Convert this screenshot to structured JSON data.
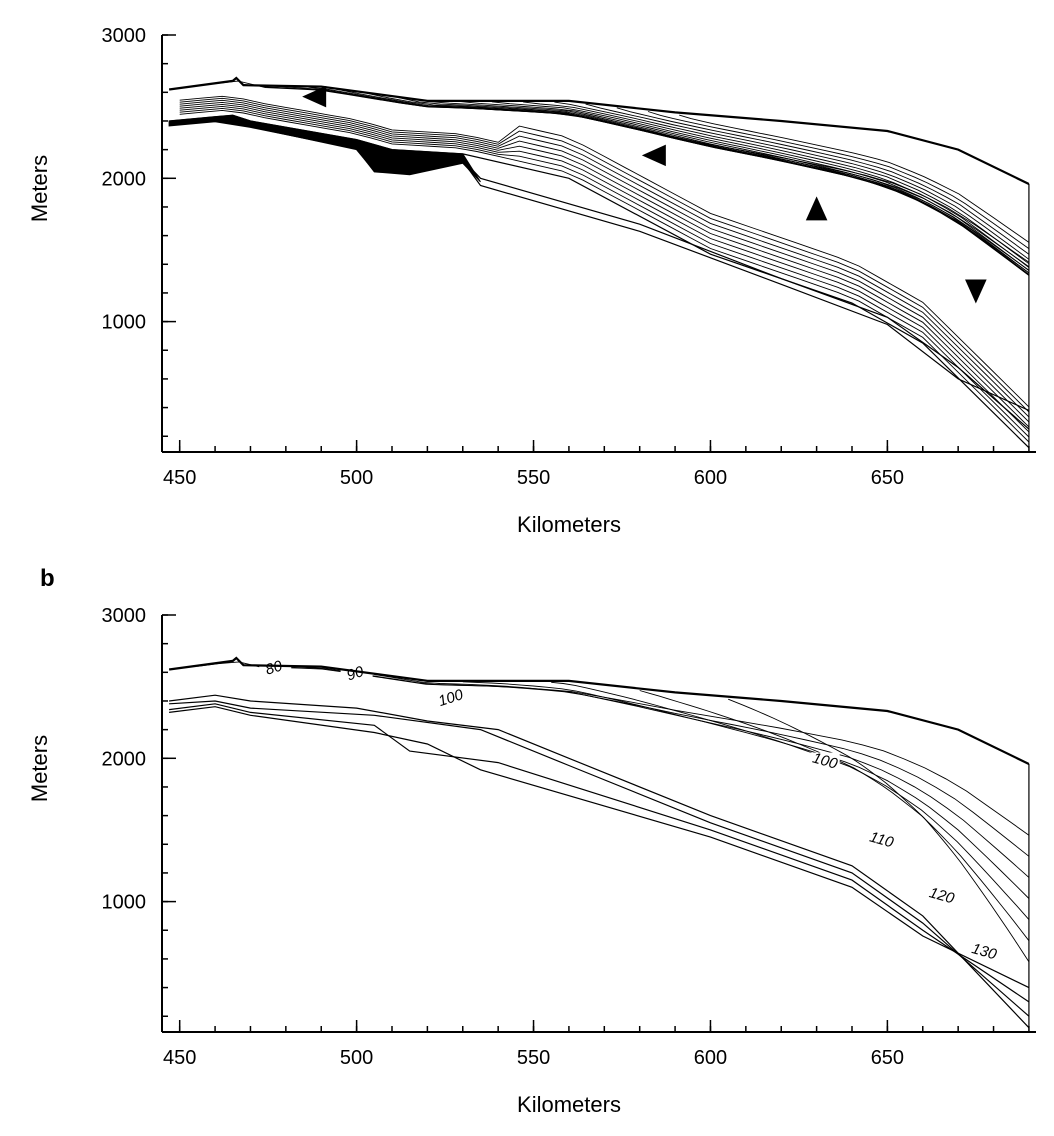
{
  "chart_data": [
    {
      "panel": "",
      "type": "line",
      "xlabel": "Kilometers",
      "ylabel": "Meters",
      "xlim": [
        445,
        692
      ],
      "ylim": [
        90,
        3000
      ],
      "x_ticks": [
        450,
        500,
        550,
        600,
        650
      ],
      "y_ticks": [
        1000,
        2000,
        3000
      ],
      "series": [
        {
          "values": [
            [
              447,
              2620
            ],
            [
              465,
              2680
            ],
            [
              466,
              2700
            ],
            [
              468,
              2650
            ],
            [
              490,
              2640
            ],
            [
              520,
              2540
            ],
            [
              560,
              2540
            ],
            [
              590,
              2460
            ],
            [
              620,
              2400
            ],
            [
              650,
              2330
            ],
            [
              670,
              2200
            ],
            [
              690,
              1960
            ]
          ]
        },
        {
          "values": [
            [
              447,
              2400
            ],
            [
              460,
              2430
            ],
            [
              465,
              2440
            ],
            [
              470,
              2400
            ],
            [
              500,
              2270
            ],
            [
              510,
              2200
            ],
            [
              530,
              2170
            ],
            [
              560,
              2000
            ],
            [
              600,
              1470
            ],
            [
              640,
              1130
            ],
            [
              660,
              850
            ],
            [
              690,
              120
            ]
          ]
        },
        {
          "values": [
            [
              447,
              2390
            ],
            [
              460,
              2420
            ],
            [
              470,
              2380
            ],
            [
              500,
              2230
            ],
            [
              505,
              2070
            ],
            [
              515,
              2050
            ],
            [
              530,
              2130
            ],
            [
              535,
              2000
            ],
            [
              580,
              1680
            ],
            [
              620,
              1300
            ],
            [
              650,
              1030
            ],
            [
              670,
              680
            ],
            [
              690,
              250
            ]
          ]
        },
        {
          "values": [
            [
              447,
              2370
            ],
            [
              460,
              2400
            ],
            [
              470,
              2360
            ],
            [
              500,
              2200
            ],
            [
              505,
              2050
            ],
            [
              515,
              2030
            ],
            [
              530,
              2120
            ],
            [
              535,
              1950
            ],
            [
              580,
              1630
            ],
            [
              620,
              1260
            ],
            [
              650,
              980
            ],
            [
              670,
              600
            ],
            [
              690,
              380
            ]
          ]
        }
      ],
      "flow_markers": [
        {
          "x": 488,
          "y": 2570,
          "direction": "left"
        },
        {
          "x": 584,
          "y": 2160,
          "direction": "left"
        },
        {
          "x": 630,
          "y": 1790,
          "direction": "up"
        },
        {
          "x": 675,
          "y": 1210,
          "direction": "down"
        }
      ]
    },
    {
      "panel": "b",
      "type": "line",
      "xlabel": "Kilometers",
      "ylabel": "Meters",
      "xlim": [
        445,
        692
      ],
      "ylim": [
        90,
        3000
      ],
      "x_ticks": [
        450,
        500,
        550,
        600,
        650
      ],
      "y_ticks": [
        1000,
        2000,
        3000
      ],
      "series": [
        {
          "values": [
            [
              447,
              2620
            ],
            [
              465,
              2680
            ],
            [
              466,
              2700
            ],
            [
              468,
              2650
            ],
            [
              490,
              2640
            ],
            [
              520,
              2540
            ],
            [
              560,
              2540
            ],
            [
              590,
              2460
            ],
            [
              620,
              2400
            ],
            [
              650,
              2330
            ],
            [
              670,
              2200
            ],
            [
              690,
              1960
            ]
          ]
        },
        {
          "values": [
            [
              447,
              2400
            ],
            [
              460,
              2440
            ],
            [
              470,
              2400
            ],
            [
              500,
              2350
            ],
            [
              520,
              2260
            ],
            [
              540,
              2200
            ],
            [
              560,
              2000
            ],
            [
              600,
              1600
            ],
            [
              640,
              1250
            ],
            [
              660,
              900
            ],
            [
              690,
              120
            ]
          ]
        },
        {
          "values": [
            [
              447,
              2380
            ],
            [
              460,
              2400
            ],
            [
              470,
              2350
            ],
            [
              505,
              2300
            ],
            [
              535,
              2200
            ],
            [
              560,
              1950
            ],
            [
              600,
              1550
            ],
            [
              640,
              1200
            ],
            [
              660,
              850
            ],
            [
              690,
              200
            ]
          ]
        },
        {
          "values": [
            [
              447,
              2340
            ],
            [
              460,
              2380
            ],
            [
              470,
              2320
            ],
            [
              505,
              2230
            ],
            [
              515,
              2050
            ],
            [
              540,
              1970
            ],
            [
              600,
              1500
            ],
            [
              640,
              1150
            ],
            [
              660,
              800
            ],
            [
              690,
              300
            ]
          ]
        },
        {
          "values": [
            [
              447,
              2320
            ],
            [
              460,
              2360
            ],
            [
              470,
              2300
            ],
            [
              505,
              2180
            ],
            [
              520,
              2100
            ],
            [
              535,
              1920
            ],
            [
              600,
              1450
            ],
            [
              640,
              1100
            ],
            [
              660,
              760
            ],
            [
              690,
              400
            ]
          ]
        }
      ],
      "isochron_labels": [
        {
          "text": "80",
          "x": 477,
          "y": 2600
        },
        {
          "text": "90",
          "x": 500,
          "y": 2560
        },
        {
          "text": "100",
          "x": 527,
          "y": 2390
        },
        {
          "text": "100",
          "x": 632,
          "y": 1950
        },
        {
          "text": "110",
          "x": 648,
          "y": 1400
        },
        {
          "text": "120",
          "x": 665,
          "y": 1010
        },
        {
          "text": "130",
          "x": 677,
          "y": 620
        }
      ]
    }
  ]
}
